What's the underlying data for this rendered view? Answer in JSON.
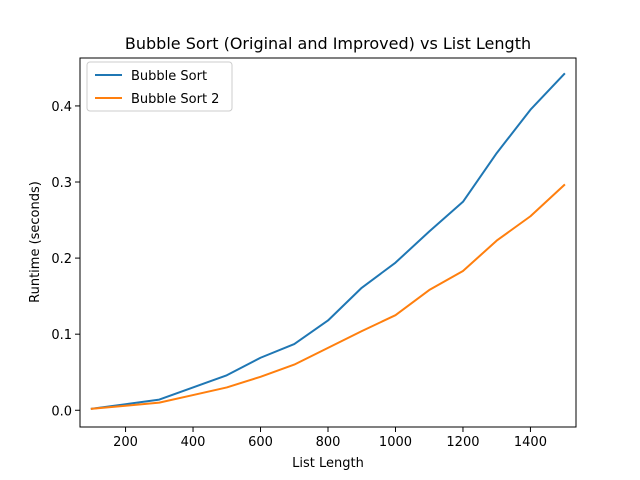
{
  "chart_data": {
    "type": "line",
    "title": "Bubble Sort (Original and Improved) vs List Length",
    "xlabel": "List Length",
    "ylabel": "Runtime (seconds)",
    "xlim": [
      65,
      1535
    ],
    "ylim": [
      -0.022,
      0.463
    ],
    "xticks": [
      200,
      400,
      600,
      800,
      1000,
      1200,
      1400
    ],
    "yticks": [
      0.0,
      0.1,
      0.2,
      0.3,
      0.4
    ],
    "xtick_labels": [
      "200",
      "400",
      "600",
      "800",
      "1000",
      "1200",
      "1400"
    ],
    "ytick_labels": [
      "0.0",
      "0.1",
      "0.2",
      "0.3",
      "0.4"
    ],
    "grid": false,
    "legend_position": "top-left",
    "x": [
      100,
      200,
      300,
      400,
      500,
      600,
      700,
      800,
      900,
      1000,
      1100,
      1200,
      1300,
      1400,
      1500
    ],
    "series": [
      {
        "name": "Bubble Sort",
        "color": "#1f77b4",
        "values": [
          0.002,
          0.008,
          0.014,
          0.03,
          0.046,
          0.069,
          0.087,
          0.118,
          0.161,
          0.194,
          0.235,
          0.274,
          0.338,
          0.395,
          0.442
        ]
      },
      {
        "name": "Bubble Sort 2",
        "color": "#ff7f0e",
        "values": [
          0.002,
          0.006,
          0.01,
          0.02,
          0.03,
          0.044,
          0.06,
          0.082,
          0.104,
          0.125,
          0.158,
          0.183,
          0.223,
          0.255,
          0.296
        ]
      }
    ]
  }
}
